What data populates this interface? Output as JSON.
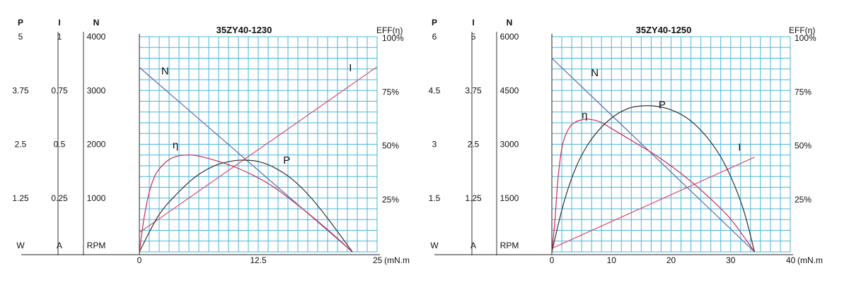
{
  "chart_data": [
    {
      "type": "line",
      "title": "35ZY40-1230",
      "x": {
        "unit": "(mN.m",
        "range": [
          0,
          25
        ],
        "ticks": [
          "0",
          "12.5",
          "25"
        ]
      },
      "axes": [
        {
          "key": "P",
          "header": "P",
          "unit": "W",
          "range": [
            0,
            5
          ],
          "tick_values": [
            5,
            3.75,
            2.5,
            1.25
          ],
          "tick_labels": [
            "5",
            "3.75",
            "2.5",
            "1.25"
          ]
        },
        {
          "key": "I",
          "header": "I",
          "unit": "A",
          "range": [
            0,
            1
          ],
          "tick_values": [
            1,
            0.75,
            0.5,
            0.25
          ],
          "tick_labels": [
            "1",
            "0.75",
            "0.5",
            "0.25"
          ]
        },
        {
          "key": "N",
          "header": "N",
          "unit": "RPM",
          "range": [
            0,
            4000
          ],
          "tick_values": [
            4000,
            3000,
            2000,
            1000
          ],
          "tick_labels": [
            "4000",
            "3000",
            "2000",
            "1000"
          ]
        },
        {
          "key": "EFF",
          "header": "EFF(η)",
          "unit": "",
          "range": [
            0,
            100
          ],
          "tick_values": [
            100,
            75,
            50,
            25
          ],
          "tick_labels": [
            "100%",
            "75%",
            "50%",
            "25%"
          ]
        }
      ],
      "grid": true,
      "series": [
        {
          "name": "N",
          "axis": "N",
          "color": "#5a6aa8",
          "label_at": [
            2.7,
            3300
          ],
          "points": [
            [
              0,
              3430
            ],
            [
              22.4,
              0
            ]
          ]
        },
        {
          "name": "I",
          "axis": "I",
          "color": "#d9506e",
          "label_at": [
            22.2,
            0.84
          ],
          "points": [
            [
              0,
              0.09
            ],
            [
              25,
              0.86
            ]
          ]
        },
        {
          "name": "η",
          "axis": "EFF",
          "color": "#cc2a55",
          "label_at": [
            3.8,
            48
          ],
          "points": [
            [
              0,
              0
            ],
            [
              0.5,
              16
            ],
            [
              1,
              27
            ],
            [
              1.5,
              34
            ],
            [
              2,
              38
            ],
            [
              3,
              42.5
            ],
            [
              4,
              44.5
            ],
            [
              5,
              45
            ],
            [
              6,
              44.7
            ],
            [
              8,
              42.5
            ],
            [
              10,
              39.5
            ],
            [
              12,
              35.5
            ],
            [
              14,
              30.5
            ],
            [
              16,
              24
            ],
            [
              18,
              17
            ],
            [
              20,
              9.5
            ],
            [
              22.4,
              0
            ]
          ]
        },
        {
          "name": "P",
          "axis": "P",
          "color": "#333333",
          "label_at": [
            15.5,
            2.05
          ],
          "points": [
            [
              0,
              0
            ],
            [
              2,
              0.84
            ],
            [
              4,
              1.36
            ],
            [
              6,
              1.76
            ],
            [
              8,
              2.01
            ],
            [
              10,
              2.12
            ],
            [
              11.2,
              2.13
            ],
            [
              12.5,
              2.1
            ],
            [
              14,
              1.98
            ],
            [
              16,
              1.7
            ],
            [
              18,
              1.27
            ],
            [
              20,
              0.72
            ],
            [
              22.4,
              0
            ]
          ]
        }
      ]
    },
    {
      "type": "line",
      "title": "35ZY40-1250",
      "x": {
        "unit": "(mN.m",
        "range": [
          0,
          40
        ],
        "ticks": [
          "0",
          "10",
          "20",
          "30",
          "40"
        ]
      },
      "axes": [
        {
          "key": "P",
          "header": "P",
          "unit": "W",
          "range": [
            0,
            6
          ],
          "tick_values": [
            6,
            4.5,
            3,
            1.5
          ],
          "tick_labels": [
            "6",
            "4.5",
            "3",
            "1.5"
          ]
        },
        {
          "key": "I",
          "header": "I",
          "unit": "A",
          "range": [
            0,
            5
          ],
          "tick_values": [
            5,
            3.75,
            2.5,
            1.25
          ],
          "tick_labels": [
            "5",
            "3.75",
            "2.5",
            "1.25"
          ]
        },
        {
          "key": "N",
          "header": "N",
          "unit": "RPM",
          "range": [
            0,
            6000
          ],
          "tick_values": [
            6000,
            4500,
            3000,
            1500
          ],
          "tick_labels": [
            "6000",
            "4500",
            "3000",
            "1500"
          ]
        },
        {
          "key": "EFF",
          "header": "EFF(η)",
          "unit": "",
          "range": [
            0,
            100
          ],
          "tick_values": [
            100,
            75,
            50,
            25
          ],
          "tick_labels": [
            "100%",
            "75%",
            "50%",
            "25%"
          ]
        }
      ],
      "grid": true,
      "series": [
        {
          "name": "N",
          "axis": "N",
          "color": "#5a6aa8",
          "label_at": [
            7.2,
            4900
          ],
          "points": [
            [
              0,
              5400
            ],
            [
              34,
              0
            ]
          ]
        },
        {
          "name": "I",
          "axis": "I",
          "color": "#d9506e",
          "label_at": [
            31.5,
            2.35
          ],
          "points": [
            [
              0,
              0.08
            ],
            [
              34,
              2.2
            ]
          ]
        },
        {
          "name": "η",
          "axis": "EFF",
          "color": "#cc2a55",
          "label_at": [
            5.5,
            62
          ],
          "points": [
            [
              0,
              0
            ],
            [
              0.5,
              14
            ],
            [
              1,
              33
            ],
            [
              1.5,
              45
            ],
            [
              2,
              52
            ],
            [
              3,
              58
            ],
            [
              4,
              60.4
            ],
            [
              5,
              61.3
            ],
            [
              6,
              61.7
            ],
            [
              8,
              60.5
            ],
            [
              10,
              57.3
            ],
            [
              14,
              50.7
            ],
            [
              18,
              43.8
            ],
            [
              22,
              35.7
            ],
            [
              26,
              26.3
            ],
            [
              30,
              15.2
            ],
            [
              34,
              0
            ]
          ]
        },
        {
          "name": "P",
          "axis": "P",
          "color": "#333333",
          "label_at": [
            18.5,
            4.0
          ],
          "points": [
            [
              0,
              0
            ],
            [
              2,
              1.37
            ],
            [
              4,
              2.34
            ],
            [
              6,
              2.98
            ],
            [
              8,
              3.42
            ],
            [
              10,
              3.73
            ],
            [
              12,
              3.94
            ],
            [
              14,
              4.05
            ],
            [
              17,
              4.07
            ],
            [
              20,
              3.96
            ],
            [
              23,
              3.69
            ],
            [
              26,
              3.2
            ],
            [
              29,
              2.45
            ],
            [
              32,
              1.25
            ],
            [
              34,
              0
            ]
          ]
        }
      ]
    }
  ]
}
